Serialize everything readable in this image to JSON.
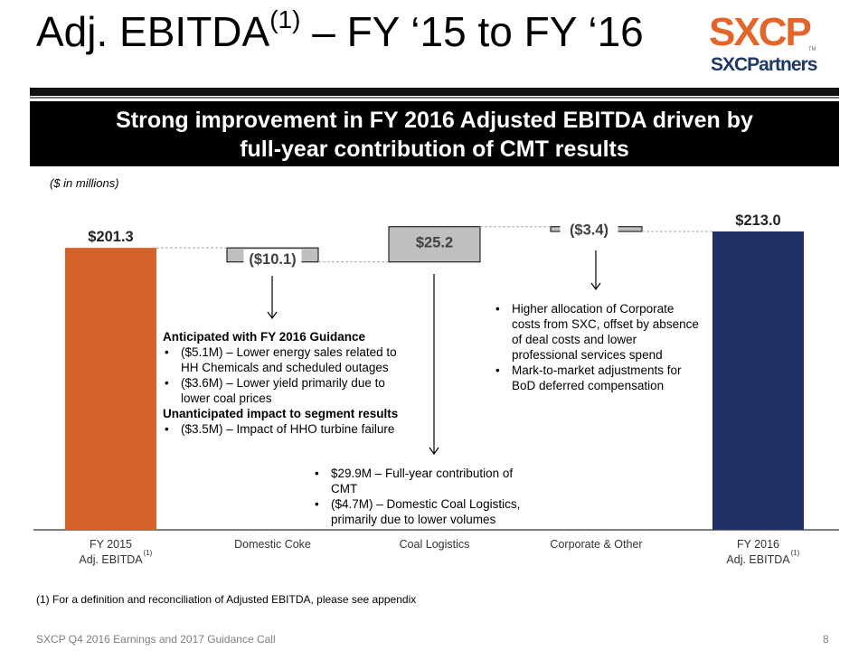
{
  "slide": {
    "title_main": "Adj. EBITDA",
    "title_sup": "(1)",
    "title_rest": " – FY ‘15 to FY ‘16",
    "banner_line1": "Strong improvement in FY 2016 Adjusted EBITDA driven by",
    "banner_line2": "full-year contribution of CMT results",
    "units": "($ in millions)",
    "footnote": "(1)  For a definition and reconciliation of Adjusted EBITDA, please see appendix",
    "footer_left": "SXCP Q4 2016 Earnings and 2017 Guidance Call",
    "page_number": "8"
  },
  "logo": {
    "top_text": "SXCP",
    "tm": "TM",
    "bottom_text": "SXCPartners"
  },
  "notes": {
    "domestic_coke": {
      "head1": "Anticipated with FY 2016 Guidance",
      "items1": [
        "($5.1M) – Lower energy sales related to HH Chemicals and scheduled outages",
        "($3.6M) – Lower yield primarily due to lower coal prices"
      ],
      "head2": "Unanticipated impact to segment results",
      "items2": [
        "($3.5M) – Impact of HHO turbine failure"
      ]
    },
    "coal_logistics": {
      "items": [
        "$29.9M – Full-year contribution of CMT",
        "($4.7M) – Domestic Coal Logistics, primarily due to lower volumes"
      ]
    },
    "corporate_other": {
      "items": [
        "Higher allocation of Corporate costs from SXC, offset by absence of deal costs and lower professional services spend",
        "Mark-to-market adjustments for BoD deferred compensation"
      ]
    }
  },
  "chart_data": {
    "type": "bar",
    "subtype": "waterfall",
    "title": "",
    "ylabel": "($ in millions)",
    "ylim": [
      0,
      213
    ],
    "categories": [
      {
        "line1": "FY 2015",
        "line2": "Adj. EBITDA",
        "sup": "(1)"
      },
      {
        "line1": "Domestic Coke",
        "line2": "",
        "sup": ""
      },
      {
        "line1": "Coal Logistics",
        "line2": "",
        "sup": ""
      },
      {
        "line1": "Corporate & Other",
        "line2": "",
        "sup": ""
      },
      {
        "line1": "FY 2016",
        "line2": "Adj. EBITDA",
        "sup": "(1)"
      }
    ],
    "bars": [
      {
        "kind": "total",
        "value": 201.3,
        "label": "$201.3",
        "color": "#d4622a"
      },
      {
        "kind": "delta",
        "value": -10.1,
        "label": "($10.1)",
        "color": "#bfbfbf"
      },
      {
        "kind": "delta",
        "value": 25.2,
        "label": "$25.2",
        "color": "#bfbfbf"
      },
      {
        "kind": "delta",
        "value": -3.4,
        "label": "($3.4)",
        "color": "#bfbfbf"
      },
      {
        "kind": "total",
        "value": 213.0,
        "label": "$213.0",
        "color": "#1f3162"
      }
    ]
  }
}
